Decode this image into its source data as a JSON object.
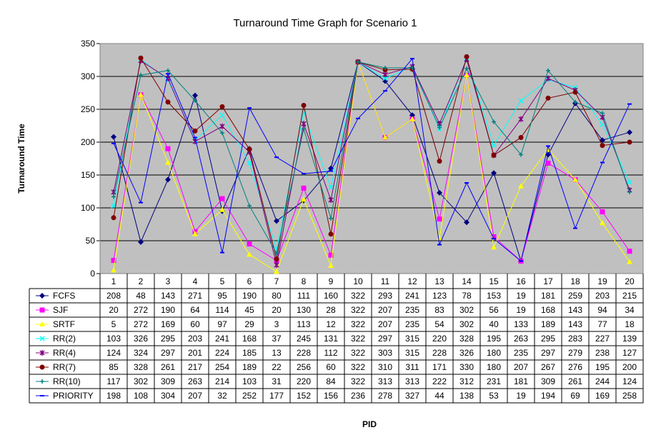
{
  "chart_data": {
    "type": "line",
    "title": "Turnaround Time Graph for Scenario 1",
    "xlabel": "PID",
    "ylabel": "Turnaround Time",
    "ylim": [
      0,
      350
    ],
    "yticks": [
      0,
      50,
      100,
      150,
      200,
      250,
      300,
      350
    ],
    "grid": true,
    "legend": "data-table-below",
    "categories": [
      "1",
      "2",
      "3",
      "4",
      "5",
      "6",
      "7",
      "8",
      "9",
      "10",
      "11",
      "12",
      "13",
      "14",
      "15",
      "16",
      "17",
      "18",
      "19",
      "20"
    ],
    "series": [
      {
        "name": "FCFS",
        "color": "#000080",
        "marker": "diamond",
        "values": [
          208,
          48,
          143,
          271,
          95,
          190,
          80,
          111,
          160,
          322,
          293,
          241,
          123,
          78,
          153,
          19,
          181,
          259,
          203,
          215
        ]
      },
      {
        "name": "SJF",
        "color": "#ff00ff",
        "marker": "square",
        "values": [
          20,
          272,
          190,
          64,
          114,
          45,
          20,
          130,
          28,
          322,
          207,
          235,
          83,
          302,
          56,
          19,
          168,
          143,
          94,
          34
        ]
      },
      {
        "name": "SRTF",
        "color": "#ffff00",
        "marker": "triangle",
        "values": [
          5,
          272,
          169,
          60,
          97,
          29,
          3,
          113,
          12,
          322,
          207,
          235,
          54,
          302,
          40,
          133,
          189,
          143,
          77,
          18
        ]
      },
      {
        "name": "RR(2)",
        "color": "#00ffff",
        "marker": "x",
        "values": [
          103,
          326,
          295,
          203,
          241,
          168,
          37,
          245,
          131,
          322,
          297,
          315,
          220,
          328,
          195,
          263,
          295,
          283,
          227,
          139
        ]
      },
      {
        "name": "RR(4)",
        "color": "#800080",
        "marker": "star",
        "values": [
          124,
          324,
          297,
          201,
          224,
          185,
          13,
          228,
          112,
          322,
          303,
          315,
          228,
          326,
          180,
          235,
          297,
          279,
          238,
          127
        ]
      },
      {
        "name": "RR(7)",
        "color": "#800000",
        "marker": "circle",
        "values": [
          85,
          328,
          261,
          217,
          254,
          189,
          22,
          256,
          60,
          322,
          310,
          311,
          171,
          330,
          180,
          207,
          267,
          276,
          195,
          200
        ]
      },
      {
        "name": "RR(10)",
        "color": "#008080",
        "marker": "plus",
        "values": [
          117,
          302,
          309,
          263,
          214,
          103,
          31,
          220,
          84,
          322,
          313,
          313,
          222,
          312,
          231,
          181,
          309,
          261,
          244,
          124
        ]
      },
      {
        "name": "PRIORITY",
        "color": "#0000ff",
        "marker": "dash",
        "values": [
          198,
          108,
          304,
          207,
          32,
          252,
          177,
          152,
          156,
          236,
          278,
          327,
          44,
          138,
          53,
          19,
          194,
          69,
          169,
          258
        ]
      }
    ]
  }
}
